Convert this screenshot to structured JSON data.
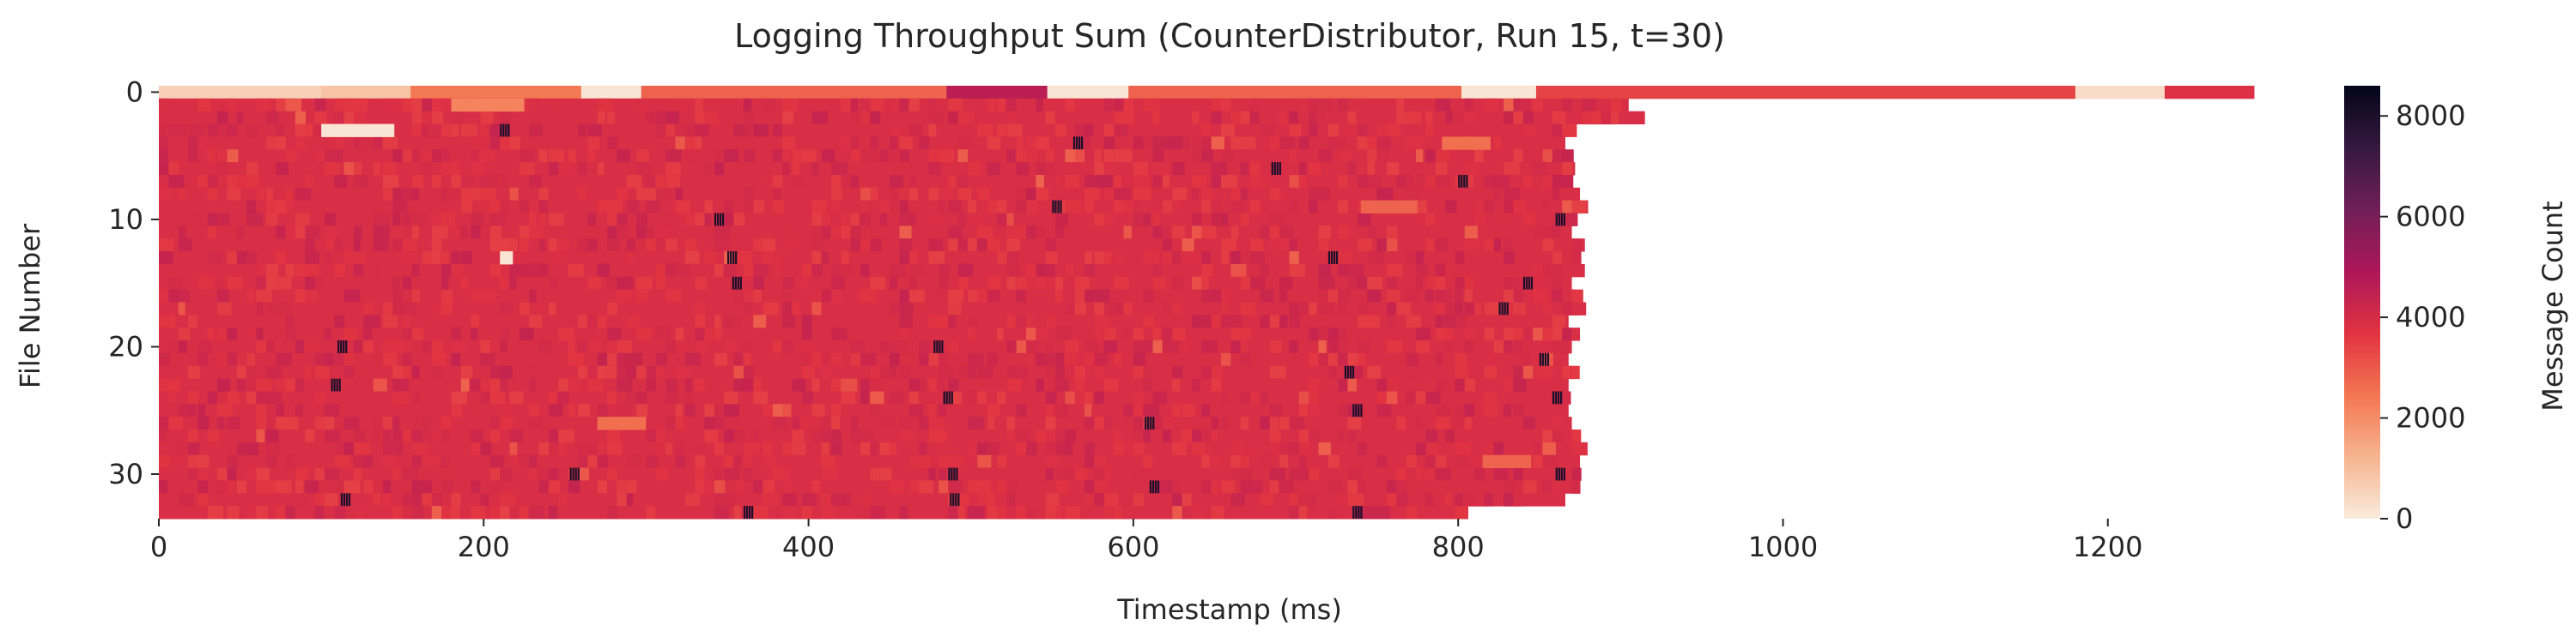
{
  "chart_data": {
    "type": "heatmap",
    "title": "Logging Throughput Sum (CounterDistributor, Run 15, t=30)",
    "xlabel": "Timestamp (ms)",
    "ylabel": "File Number",
    "colorbar_label": "Message Count",
    "xlim": [
      0,
      1290
    ],
    "ylim": [
      0,
      34
    ],
    "x_ticks": [
      0,
      200,
      400,
      600,
      800,
      1000,
      1200
    ],
    "y_ticks": [
      0,
      10,
      20,
      30
    ],
    "colorbar_ticks": [
      0,
      2000,
      4000,
      6000,
      8000
    ],
    "color_range": [
      0,
      8600
    ],
    "colormap": "rocket_r",
    "colormap_stops": [
      "#faebdd",
      "#f6b48f",
      "#f37651",
      "#e13342",
      "#ad1759",
      "#701f57",
      "#35193e",
      "#03051a"
    ],
    "grid": false,
    "rows": 34,
    "row0": {
      "end_ms": 1290,
      "segments": [
        [
          0,
          100,
          600
        ],
        [
          100,
          155,
          900
        ],
        [
          155,
          260,
          2400
        ],
        [
          260,
          297,
          150
        ],
        [
          297,
          485,
          2800
        ],
        [
          485,
          547,
          4600
        ],
        [
          547,
          597,
          150
        ],
        [
          597,
          802,
          2800
        ],
        [
          802,
          848,
          150
        ],
        [
          848,
          1180,
          3400
        ],
        [
          1180,
          1235,
          350
        ],
        [
          1235,
          1290,
          3800
        ]
      ]
    },
    "row_end_ms": [
      905,
      915,
      866,
      866,
      866,
      872,
      868,
      875,
      880,
      872,
      870,
      878,
      872,
      878,
      870,
      872,
      875,
      868,
      875,
      870,
      868,
      872,
      868,
      866,
      868,
      870,
      872,
      872,
      875,
      872,
      875,
      866,
      802
    ],
    "typical_value": 3900,
    "hotspot_value": 8000,
    "hotspots": [
      {
        "file": 3,
        "ms": 210
      },
      {
        "file": 4,
        "ms": 563
      },
      {
        "file": 6,
        "ms": 685
      },
      {
        "file": 7,
        "ms": 800
      },
      {
        "file": 9,
        "ms": 550
      },
      {
        "file": 10,
        "ms": 860
      },
      {
        "file": 10,
        "ms": 342
      },
      {
        "file": 13,
        "ms": 350
      },
      {
        "file": 13,
        "ms": 720
      },
      {
        "file": 15,
        "ms": 353
      },
      {
        "file": 15,
        "ms": 840
      },
      {
        "file": 17,
        "ms": 825
      },
      {
        "file": 20,
        "ms": 110
      },
      {
        "file": 20,
        "ms": 477
      },
      {
        "file": 21,
        "ms": 850
      },
      {
        "file": 22,
        "ms": 730
      },
      {
        "file": 23,
        "ms": 106
      },
      {
        "file": 24,
        "ms": 483
      },
      {
        "file": 24,
        "ms": 858
      },
      {
        "file": 25,
        "ms": 735
      },
      {
        "file": 26,
        "ms": 607
      },
      {
        "file": 30,
        "ms": 860
      },
      {
        "file": 30,
        "ms": 486
      },
      {
        "file": 30,
        "ms": 253
      },
      {
        "file": 31,
        "ms": 610
      },
      {
        "file": 32,
        "ms": 487
      },
      {
        "file": 32,
        "ms": 112
      },
      {
        "file": 33,
        "ms": 360
      },
      {
        "file": 33,
        "ms": 735
      }
    ],
    "low_patches": [
      {
        "file": 3,
        "start": 100,
        "end": 145,
        "value": 150
      },
      {
        "file": 13,
        "start": 210,
        "end": 218,
        "value": 150
      },
      {
        "file": 1,
        "start": 180,
        "end": 225,
        "value": 2200
      },
      {
        "file": 4,
        "start": 790,
        "end": 820,
        "value": 2600
      },
      {
        "file": 9,
        "start": 740,
        "end": 775,
        "value": 2800
      },
      {
        "file": 26,
        "start": 270,
        "end": 300,
        "value": 2600
      },
      {
        "file": 29,
        "start": 815,
        "end": 845,
        "value": 2800
      }
    ]
  }
}
